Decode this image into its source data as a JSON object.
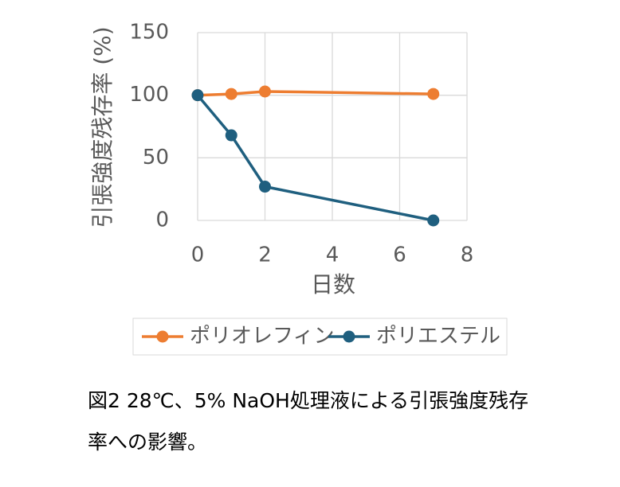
{
  "chart_data": {
    "type": "line",
    "x": [
      0,
      1,
      2,
      7
    ],
    "series": [
      {
        "name": "ポリオレフィン",
        "color": "#ed7d31",
        "values": [
          100,
          101,
          103,
          101
        ]
      },
      {
        "name": "ポリエステル",
        "color": "#1f5f7f",
        "values": [
          100,
          68,
          27,
          0
        ]
      }
    ],
    "xlabel": "日数",
    "ylabel": "引張強度残存率 (%)",
    "xlim": [
      0,
      8
    ],
    "xticks": [
      0,
      2,
      4,
      6,
      8
    ],
    "ylim": [
      0,
      150
    ],
    "yticks": [
      0,
      50,
      100,
      150
    ],
    "grid": true,
    "legend": "bottom",
    "caption": [
      "図2 28℃、5% NaOH処理液による引張強度残存",
      "率への影響。"
    ]
  }
}
